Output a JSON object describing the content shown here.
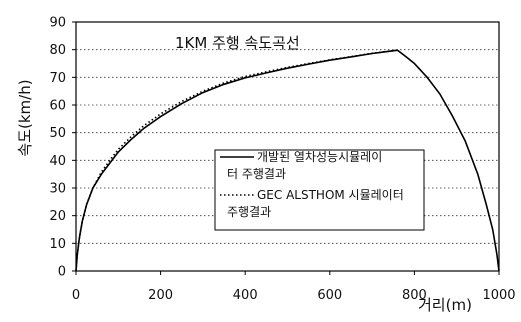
{
  "chart_data": {
    "type": "line",
    "title": "1KM 주행 속도곡선",
    "xlabel": "거리(m)",
    "ylabel": "속도(km/h)",
    "xlim": [
      0,
      1000
    ],
    "ylim": [
      0,
      90
    ],
    "x_ticks": [
      0,
      200,
      400,
      600,
      800,
      1000
    ],
    "y_ticks": [
      0,
      10,
      20,
      30,
      40,
      50,
      60,
      70,
      80,
      90
    ],
    "grid": "horizontal-dotted",
    "legend_position": "center-right",
    "series": [
      {
        "name": "개발된 열차성능시뮬레이터 주행결과",
        "name_lines": [
          "개발된 열차성능시뮬레이",
          "터 주행결과"
        ],
        "style": "solid",
        "color": "#000000",
        "x": [
          0,
          3,
          8,
          15,
          25,
          40,
          60,
          80,
          100,
          130,
          160,
          200,
          250,
          300,
          350,
          400,
          450,
          500,
          550,
          600,
          650,
          700,
          740,
          760,
          780,
          800,
          830,
          860,
          890,
          920,
          950,
          970,
          985,
          995,
          1000
        ],
        "y": [
          0,
          6,
          12,
          18,
          24,
          30,
          35,
          39,
          43,
          47.5,
          51.5,
          55.8,
          60.5,
          64.5,
          67.5,
          69.8,
          71.6,
          73.3,
          74.8,
          76.2,
          77.4,
          78.6,
          79.4,
          79.8,
          77.5,
          75,
          70,
          64,
          56,
          47,
          35,
          24,
          15,
          6,
          0
        ]
      },
      {
        "name": "GEC ALSTHOM 시뮬레이터 주행결과",
        "name_lines": [
          "GEC ALSTHOM 시뮬레이터",
          "주행결과"
        ],
        "style": "dotted",
        "color": "#000000",
        "x": [
          0,
          3,
          8,
          15,
          25,
          40,
          60,
          80,
          100,
          130,
          160,
          200,
          250,
          300,
          350,
          400,
          450,
          500,
          550,
          600,
          650,
          700,
          740,
          760
        ],
        "y": [
          0,
          6,
          12,
          18,
          24,
          30,
          35.8,
          40,
          44,
          48.5,
          52.5,
          56.8,
          61.3,
          65,
          68,
          70.3,
          72,
          73.6,
          75,
          76.3,
          77.5,
          78.7,
          79.4,
          79.8
        ]
      }
    ]
  }
}
